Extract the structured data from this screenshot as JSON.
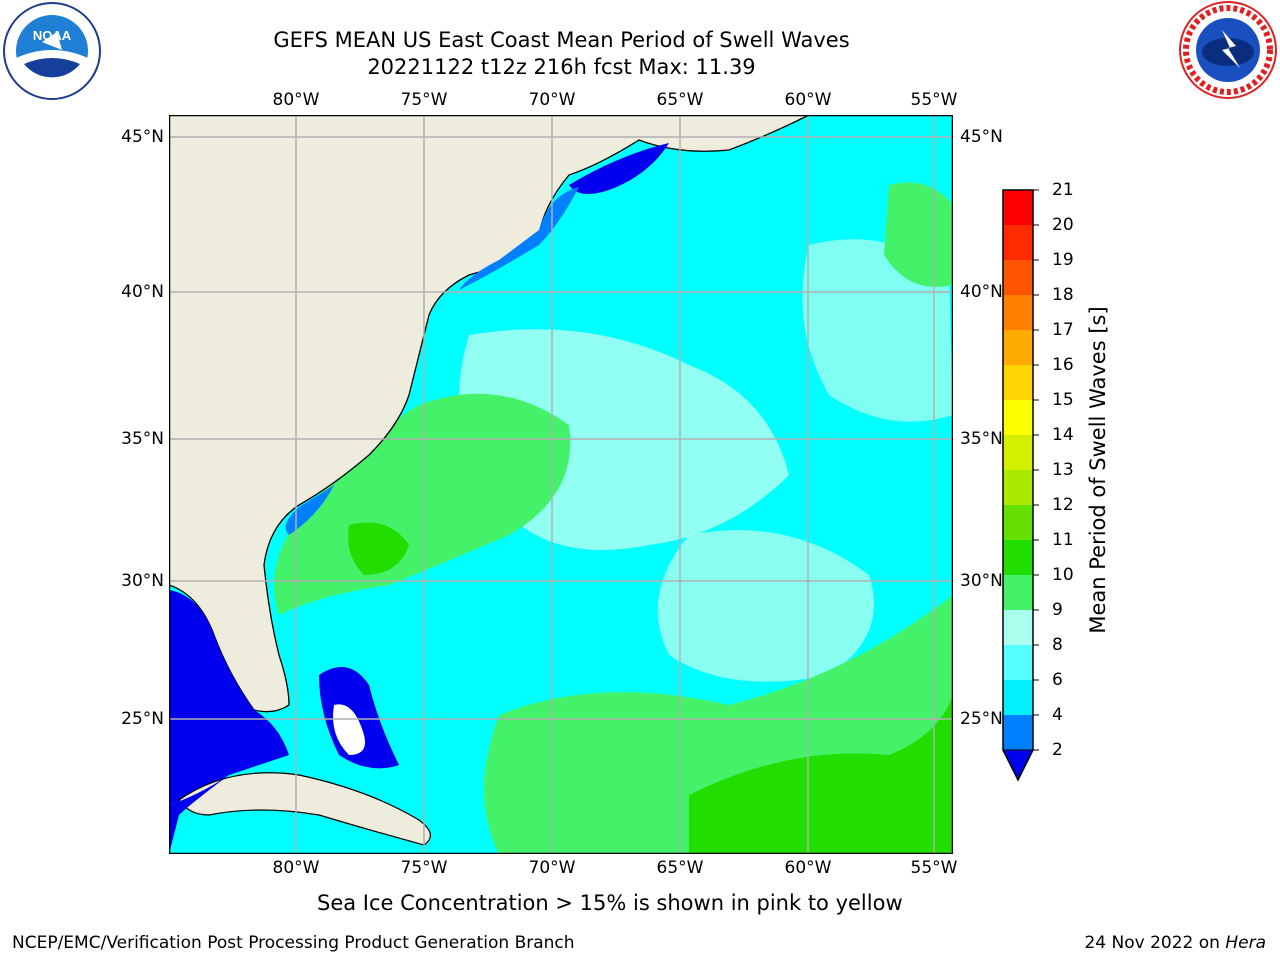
{
  "header": {
    "title_line1": "GEFS MEAN US East Coast Mean Period of Swell Waves",
    "title_line2": "20221122 t12z 216h fcst   Max: 11.39"
  },
  "logos": {
    "left": "noaa-logo",
    "right": "national-weather-service-logo"
  },
  "map": {
    "lon_ticks": [
      "80°W",
      "75°W",
      "70°W",
      "65°W",
      "60°W",
      "55°W"
    ],
    "lat_ticks": [
      "45°N",
      "40°N",
      "35°N",
      "30°N",
      "25°N"
    ],
    "lon_range": [
      -85,
      -53.5
    ],
    "lat_range": [
      20.5,
      46
    ],
    "max_value": 11.39,
    "colors": {
      "land": "#eeecdc",
      "grid": "#b0b0b0",
      "coast": "#000000"
    }
  },
  "colorbar": {
    "title": "Mean Period of Swell Waves [s]",
    "levels": [
      "21",
      "20",
      "19",
      "18",
      "17",
      "16",
      "15",
      "14",
      "13",
      "12",
      "11",
      "10",
      "9",
      "8",
      "6",
      "4",
      "2"
    ],
    "colors": [
      "#ff0000",
      "#ff2a00",
      "#ff5500",
      "#ff7f00",
      "#ffaa00",
      "#ffd400",
      "#ffff00",
      "#d4f000",
      "#aaea00",
      "#66e000",
      "#22dd00",
      "#44f26a",
      "#aaffee",
      "#55ffff",
      "#00f0ff",
      "#0080ff",
      "#0000ee"
    ]
  },
  "footer": {
    "note": "Sea Ice Concentration > 15% is shown in pink to yellow",
    "credit": "NCEP/EMC/Verification Post Processing Product Generation Branch",
    "date": "24 Nov 2022 on ",
    "machine": "Hera"
  }
}
